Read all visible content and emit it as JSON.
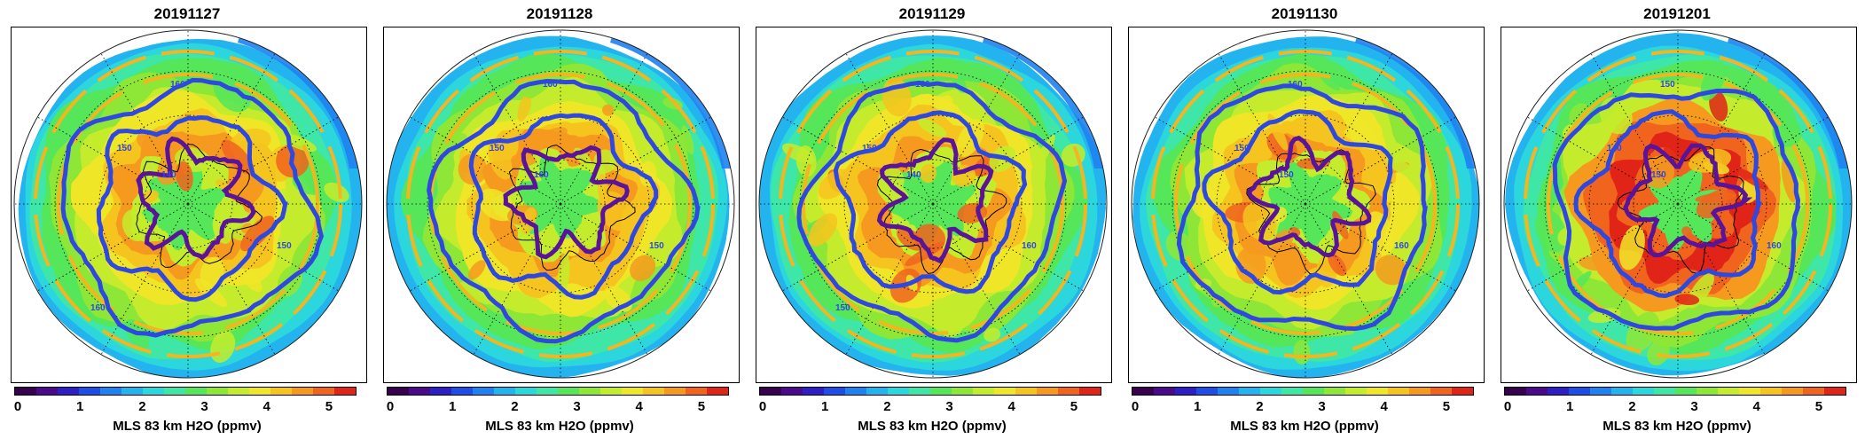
{
  "colorbar": {
    "label": "MLS 83 km H2O (ppmv)",
    "min": 0,
    "max": 5.5,
    "ticks": [
      "0",
      "1",
      "2",
      "3",
      "4",
      "5"
    ],
    "colors": [
      "#3a0050",
      "#4b0a8c",
      "#2e1fc4",
      "#1f4ee6",
      "#1e82f0",
      "#23b4f0",
      "#2cd6dd",
      "#3ee6a8",
      "#55e65a",
      "#8ee636",
      "#c4ec2c",
      "#f0e628",
      "#f5c41e",
      "#f59a1e",
      "#f0641e",
      "#e02418"
    ]
  },
  "chart_data": [
    {
      "type": "heatmap",
      "title": "20191127",
      "projection": "south-polar-orthographic",
      "contour_labels": [
        "160",
        "150",
        "140",
        "150",
        "160"
      ],
      "contour_levels": [
        140,
        150,
        160
      ]
    },
    {
      "type": "heatmap",
      "title": "20191128",
      "projection": "south-polar-orthographic",
      "contour_labels": [
        "160",
        "150",
        "160",
        "150"
      ],
      "contour_levels": [
        150,
        160
      ]
    },
    {
      "type": "heatmap",
      "title": "20191129",
      "projection": "south-polar-orthographic",
      "contour_labels": [
        "160",
        "150",
        "140",
        "160",
        "150"
      ],
      "contour_levels": [
        140,
        150,
        160
      ]
    },
    {
      "type": "heatmap",
      "title": "20191130",
      "projection": "south-polar-orthographic",
      "contour_labels": [
        "160",
        "150",
        "150",
        "160"
      ],
      "contour_levels": [
        150,
        160
      ]
    },
    {
      "type": "heatmap",
      "title": "20191201",
      "projection": "south-polar-orthographic",
      "contour_labels": [
        "150",
        "140",
        "150",
        "160"
      ],
      "contour_levels": [
        140,
        150,
        160
      ]
    }
  ]
}
